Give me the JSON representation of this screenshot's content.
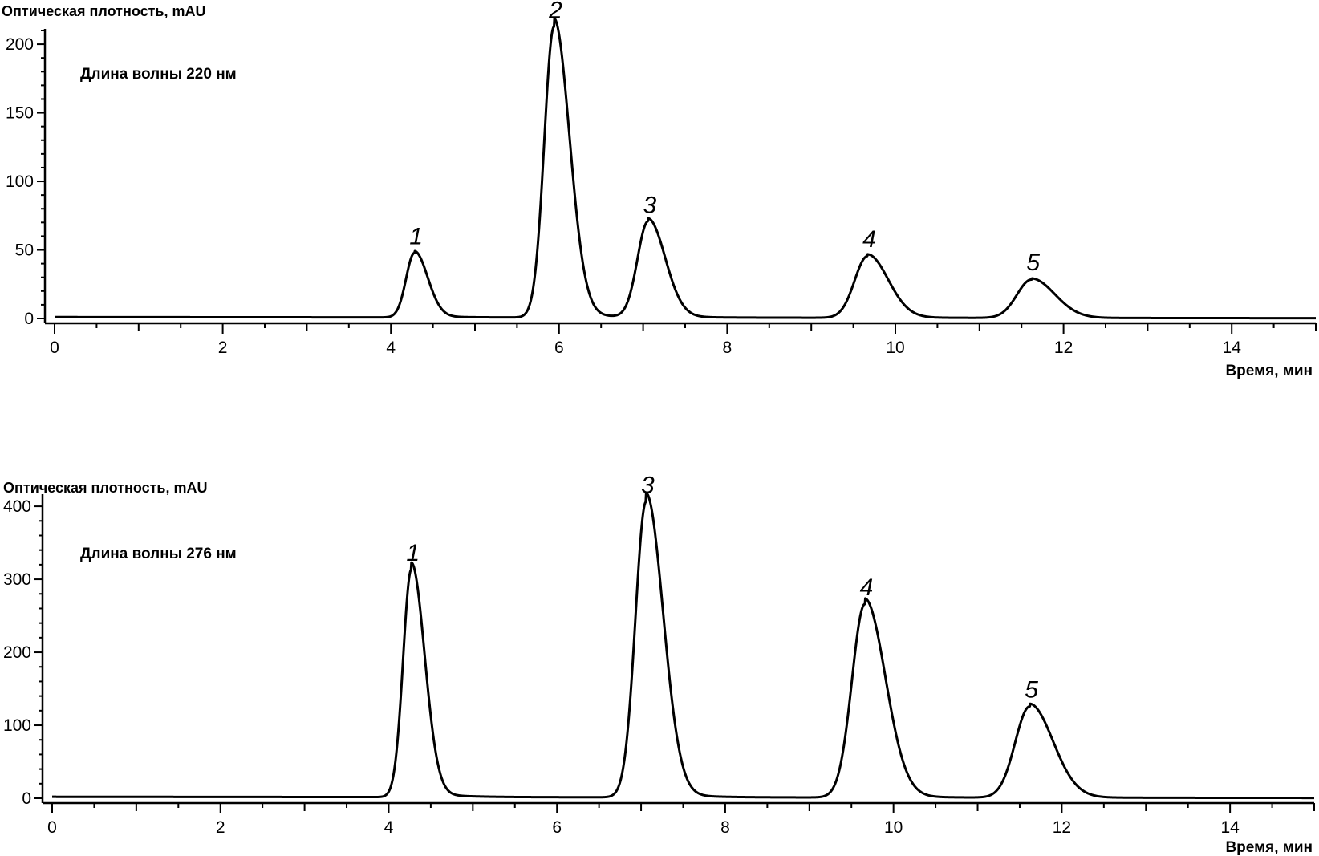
{
  "chart_data": [
    {
      "type": "line",
      "ylabel": "Оптическая плотность, mAU",
      "xlabel": "Время, мин",
      "annotation": "Длина волны 220 нм",
      "xlim": [
        0,
        15
      ],
      "ylim": [
        0,
        210
      ],
      "xticks": [
        0,
        2,
        4,
        6,
        8,
        10,
        12,
        14
      ],
      "yticks": [
        0,
        50,
        100,
        150,
        200
      ],
      "grid": false,
      "baseline": 1,
      "peaks": [
        {
          "label": "1",
          "time": 4.28,
          "height": 47
        },
        {
          "label": "2",
          "time": 5.94,
          "height": 212
        },
        {
          "label": "3",
          "time": 7.06,
          "height": 70
        },
        {
          "label": "4",
          "time": 9.67,
          "height": 45
        },
        {
          "label": "5",
          "time": 11.62,
          "height": 28
        }
      ]
    },
    {
      "type": "line",
      "ylabel": "Оптическая плотность, mAU",
      "xlabel": "Время, мин",
      "annotation": "Длина волны 276 нм",
      "xlim": [
        0,
        15
      ],
      "ylim": [
        0,
        410
      ],
      "xticks": [
        0,
        2,
        4,
        6,
        8,
        10,
        12,
        14
      ],
      "yticks": [
        0,
        100,
        200,
        300,
        400
      ],
      "grid": false,
      "baseline": 2,
      "peaks": [
        {
          "label": "1",
          "time": 4.27,
          "height": 312
        },
        {
          "label": "3",
          "time": 7.06,
          "height": 405
        },
        {
          "label": "4",
          "time": 9.66,
          "height": 265
        },
        {
          "label": "5",
          "time": 11.62,
          "height": 125
        }
      ]
    }
  ]
}
